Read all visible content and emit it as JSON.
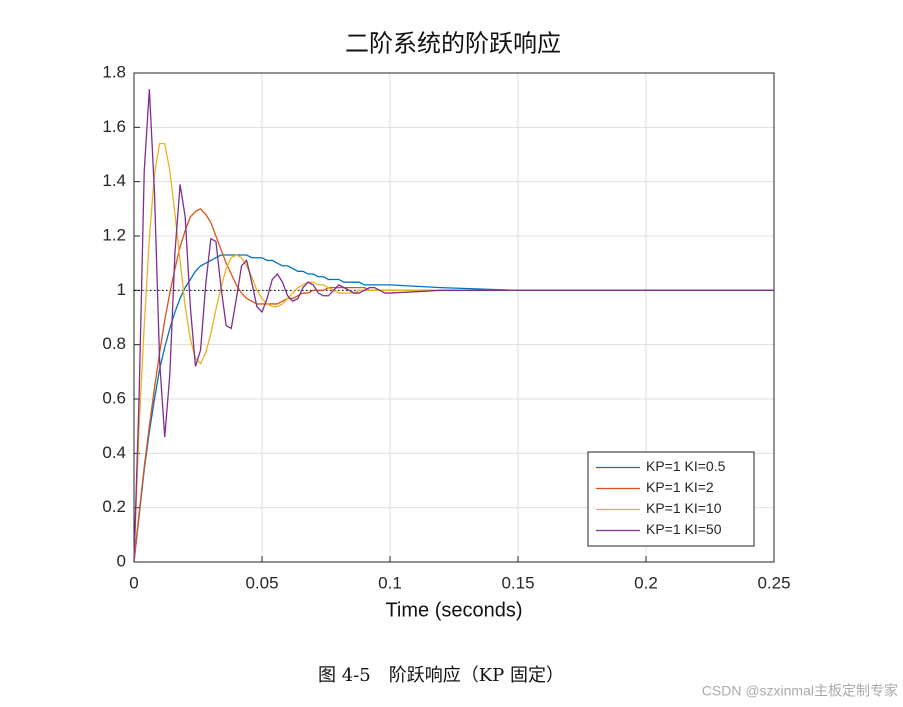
{
  "chart_data": {
    "type": "line",
    "title": "二阶系统的阶跃响应",
    "xlabel": "Time (seconds)",
    "x": [
      0,
      0.002,
      0.004,
      0.006,
      0.008,
      0.01,
      0.012,
      0.014,
      0.016,
      0.018,
      0.02,
      0.022,
      0.024,
      0.026,
      0.028,
      0.03,
      0.032,
      0.034,
      0.036,
      0.038,
      0.04,
      0.042,
      0.044,
      0.046,
      0.048,
      0.05,
      0.052,
      0.054,
      0.056,
      0.058,
      0.06,
      0.062,
      0.064,
      0.066,
      0.068,
      0.07,
      0.072,
      0.074,
      0.076,
      0.078,
      0.08,
      0.082,
      0.084,
      0.086,
      0.088,
      0.09,
      0.092,
      0.094,
      0.096,
      0.098,
      0.1,
      0.12,
      0.15,
      0.2,
      0.25
    ],
    "series": [
      {
        "name": "KP=1 KI=0.5",
        "color": "#0072BD",
        "values": [
          0,
          0.17,
          0.34,
          0.48,
          0.6,
          0.71,
          0.79,
          0.86,
          0.92,
          0.97,
          1.01,
          1.04,
          1.07,
          1.09,
          1.1,
          1.11,
          1.12,
          1.13,
          1.13,
          1.13,
          1.13,
          1.13,
          1.13,
          1.12,
          1.12,
          1.12,
          1.11,
          1.11,
          1.1,
          1.09,
          1.09,
          1.08,
          1.07,
          1.07,
          1.06,
          1.06,
          1.05,
          1.05,
          1.04,
          1.04,
          1.04,
          1.03,
          1.03,
          1.03,
          1.03,
          1.02,
          1.02,
          1.02,
          1.02,
          1.02,
          1.02,
          1.01,
          1,
          1,
          1
        ]
      },
      {
        "name": "KP=1 KI=2",
        "color": "#D95319",
        "values": [
          0,
          0.18,
          0.35,
          0.5,
          0.64,
          0.77,
          0.89,
          0.99,
          1.08,
          1.16,
          1.22,
          1.27,
          1.29,
          1.3,
          1.28,
          1.25,
          1.2,
          1.15,
          1.1,
          1.06,
          1.02,
          0.99,
          0.97,
          0.96,
          0.95,
          0.95,
          0.95,
          0.95,
          0.95,
          0.96,
          0.97,
          0.97,
          0.98,
          0.99,
          0.99,
          1,
          1,
          1,
          1.01,
          1.01,
          1.01,
          1.01,
          1.01,
          1.01,
          1.01,
          1.01,
          1,
          1,
          1,
          1,
          1,
          1,
          1,
          1,
          1
        ]
      },
      {
        "name": "KP=1 KI=10",
        "color": "#EDB120",
        "values": [
          0,
          0.5,
          0.87,
          1.19,
          1.43,
          1.54,
          1.54,
          1.44,
          1.28,
          1.11,
          0.94,
          0.82,
          0.75,
          0.73,
          0.77,
          0.84,
          0.93,
          1.01,
          1.08,
          1.12,
          1.13,
          1.12,
          1.09,
          1.05,
          1,
          0.97,
          0.95,
          0.94,
          0.94,
          0.95,
          0.97,
          0.99,
          1.01,
          1.02,
          1.03,
          1.03,
          1.02,
          1.02,
          1.01,
          1,
          0.99,
          0.99,
          0.99,
          0.99,
          1,
          1,
          1,
          1,
          1,
          1,
          1,
          1,
          1,
          1,
          1
        ]
      },
      {
        "name": "KP=1 KI=50",
        "color": "#7E2F8E",
        "values": [
          0,
          0.61,
          1.44,
          1.74,
          1.36,
          0.74,
          0.46,
          0.69,
          1.14,
          1.39,
          1.27,
          0.94,
          0.72,
          0.78,
          1.02,
          1.19,
          1.18,
          1.01,
          0.87,
          0.86,
          0.97,
          1.09,
          1.11,
          1.03,
          0.94,
          0.92,
          0.97,
          1.04,
          1.06,
          1.03,
          0.98,
          0.96,
          0.97,
          1.01,
          1.03,
          1.02,
          0.99,
          0.98,
          0.98,
          1,
          1.02,
          1.01,
          1,
          0.99,
          0.99,
          1,
          1.01,
          1.01,
          1,
          0.99,
          0.99,
          1,
          1,
          1,
          1
        ]
      }
    ],
    "reference_y": 1,
    "xlim": [
      0,
      0.25
    ],
    "xticks": [
      0,
      0.05,
      0.1,
      0.15,
      0.2,
      0.25
    ],
    "ylim": [
      0,
      1.8
    ],
    "yticks": [
      0,
      0.2,
      0.4,
      0.6,
      0.8,
      1,
      1.2,
      1.4,
      1.6,
      1.8
    ],
    "grid": true,
    "legend": "lower right"
  },
  "caption": "图 4-5　阶跃响应（KP 固定）",
  "watermark": "CSDN @szxinmal主板定制专家"
}
